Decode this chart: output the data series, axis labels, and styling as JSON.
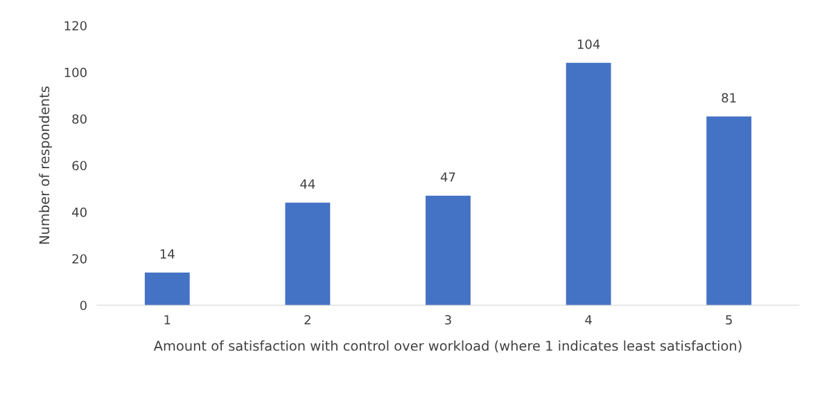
{
  "chart_data": {
    "type": "bar",
    "xlabel": "Amount of satisfaction with control over workload (where 1 indicates least satisfaction)",
    "ylabel": "Number of respondents",
    "categories": [
      "1",
      "2",
      "3",
      "4",
      "5"
    ],
    "values": [
      14,
      44,
      47,
      104,
      81
    ],
    "color": "#4472c4",
    "ylim": [
      0,
      120
    ],
    "yticks": [
      0,
      20,
      40,
      60,
      80,
      100,
      120
    ],
    "data_labels": true,
    "grid": false,
    "legend": false
  }
}
